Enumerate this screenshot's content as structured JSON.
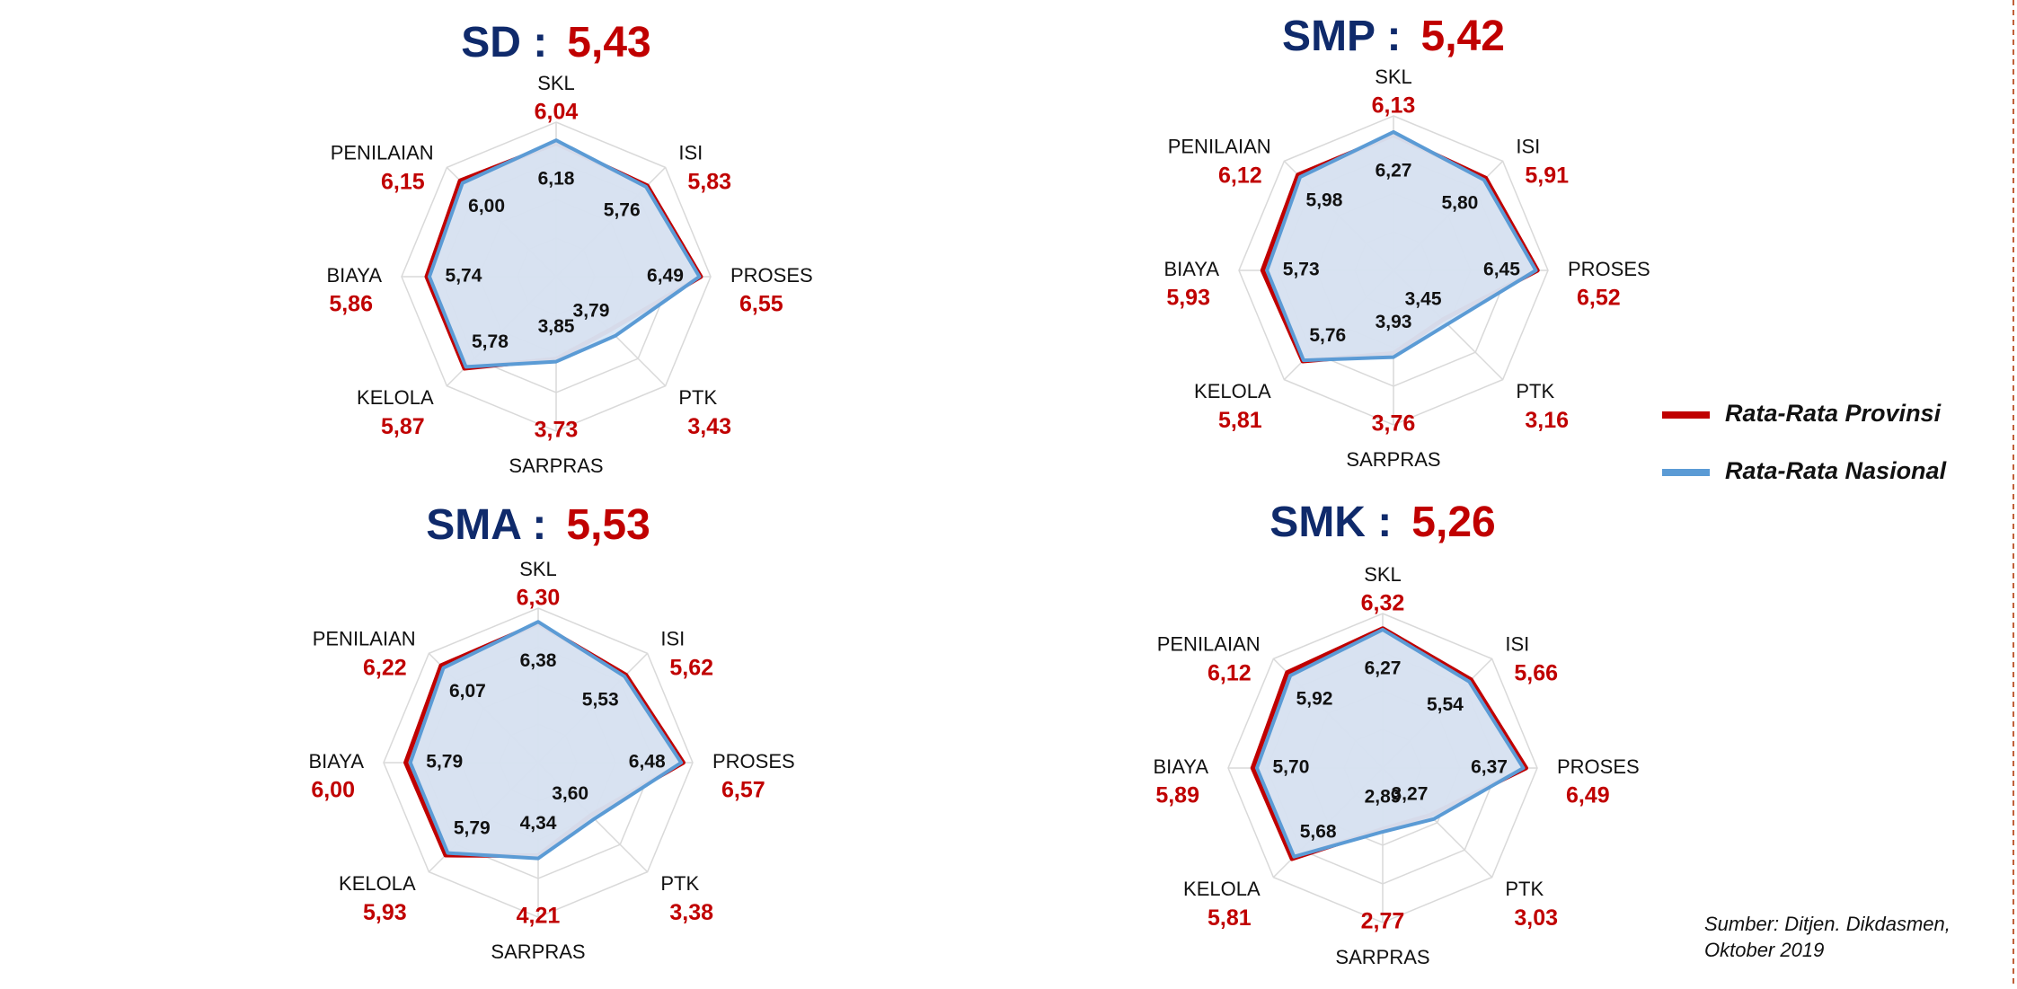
{
  "legend": [
    {
      "name": "Rata-Rata Provinsi",
      "color": "#c00000"
    },
    {
      "name": "Rata-Rata Nasional",
      "color": "#5b9bd5"
    }
  ],
  "source": [
    "Sumber: Ditjen. Dikdasmen,",
    "Oktober 2019"
  ],
  "chart_data": [
    {
      "type": "radar",
      "title": "SD :",
      "score": "5,43",
      "categories": [
        "SKL",
        "ISI",
        "PROSES",
        "PTK",
        "SARPRAS",
        "KELOLA",
        "BIAYA",
        "PENILAIAN"
      ],
      "rlim": [
        0,
        7
      ],
      "rticks": [
        1.75,
        3.5,
        5.25,
        7
      ],
      "series": [
        {
          "values": [
            6.04,
            5.83,
            6.55,
            3.43,
            3.73,
            5.87,
            5.86,
            6.15
          ],
          "value_labels": [
            "6,04",
            "5,83",
            "6,55",
            "3,43",
            "3,73",
            "5,87",
            "5,86",
            "6,15"
          ]
        },
        {
          "values": [
            6.18,
            5.76,
            6.49,
            3.79,
            3.85,
            5.78,
            5.74,
            6.0
          ],
          "value_labels": [
            "6,18",
            "5,76",
            "6,49",
            "3,79",
            "3,85",
            "5,78",
            "5,74",
            "6,00"
          ]
        }
      ]
    },
    {
      "type": "radar",
      "title": "SMP :",
      "score": "5,42",
      "categories": [
        "SKL",
        "ISI",
        "PROSES",
        "PTK",
        "SARPRAS",
        "KELOLA",
        "BIAYA",
        "PENILAIAN"
      ],
      "rlim": [
        0,
        7
      ],
      "rticks": [
        1.75,
        3.5,
        5.25,
        7
      ],
      "series": [
        {
          "values": [
            6.13,
            5.91,
            6.52,
            3.16,
            3.76,
            5.81,
            5.93,
            6.12
          ],
          "value_labels": [
            "6,13",
            "5,91",
            "6,52",
            "3,16",
            "3,76",
            "5,81",
            "5,93",
            "6,12"
          ]
        },
        {
          "values": [
            6.27,
            5.8,
            6.45,
            3.45,
            3.93,
            5.76,
            5.73,
            5.98
          ],
          "value_labels": [
            "6,27",
            "5,80",
            "6,45",
            "3,45",
            "3,93",
            "5,76",
            "5,73",
            "5,98"
          ]
        }
      ]
    },
    {
      "type": "radar",
      "title": "SMA :",
      "score": "5,53",
      "categories": [
        "SKL",
        "ISI",
        "PROSES",
        "PTK",
        "SARPRAS",
        "KELOLA",
        "BIAYA",
        "PENILAIAN"
      ],
      "rlim": [
        0,
        7
      ],
      "rticks": [
        1.75,
        3.5,
        5.25,
        7
      ],
      "series": [
        {
          "values": [
            6.3,
            5.62,
            6.57,
            3.38,
            4.21,
            5.93,
            6.0,
            6.22
          ],
          "value_labels": [
            "6,30",
            "5,62",
            "6,57",
            "3,38",
            "4,21",
            "5,93",
            "6,00",
            "6,22"
          ]
        },
        {
          "values": [
            6.38,
            5.53,
            6.48,
            3.6,
            4.34,
            5.79,
            5.79,
            6.07
          ],
          "value_labels": [
            "6,38",
            "5,53",
            "6,48",
            "3,60",
            "4,34",
            "5,79",
            "5,79",
            "6,07"
          ]
        }
      ]
    },
    {
      "type": "radar",
      "title": "SMK :",
      "score": "5,26",
      "categories": [
        "SKL",
        "ISI",
        "PROSES",
        "PTK",
        "SARPRAS",
        "KELOLA",
        "BIAYA",
        "PENILAIAN"
      ],
      "rlim": [
        0,
        7
      ],
      "rticks": [
        1.75,
        3.5,
        5.25,
        7
      ],
      "series": [
        {
          "values": [
            6.32,
            5.66,
            6.49,
            3.03,
            2.77,
            5.81,
            5.89,
            6.12
          ],
          "value_labels": [
            "6,32",
            "5,66",
            "6,49",
            "3,03",
            "2,77",
            "5,81",
            "5,89",
            "6,12"
          ]
        },
        {
          "values": [
            6.27,
            5.54,
            6.37,
            3.27,
            2.89,
            5.68,
            5.7,
            5.92
          ],
          "value_labels": [
            "6,27",
            "5,54",
            "6,37",
            "3,27",
            "2,89",
            "5,68",
            "5,70",
            "5,92"
          ]
        }
      ]
    }
  ]
}
